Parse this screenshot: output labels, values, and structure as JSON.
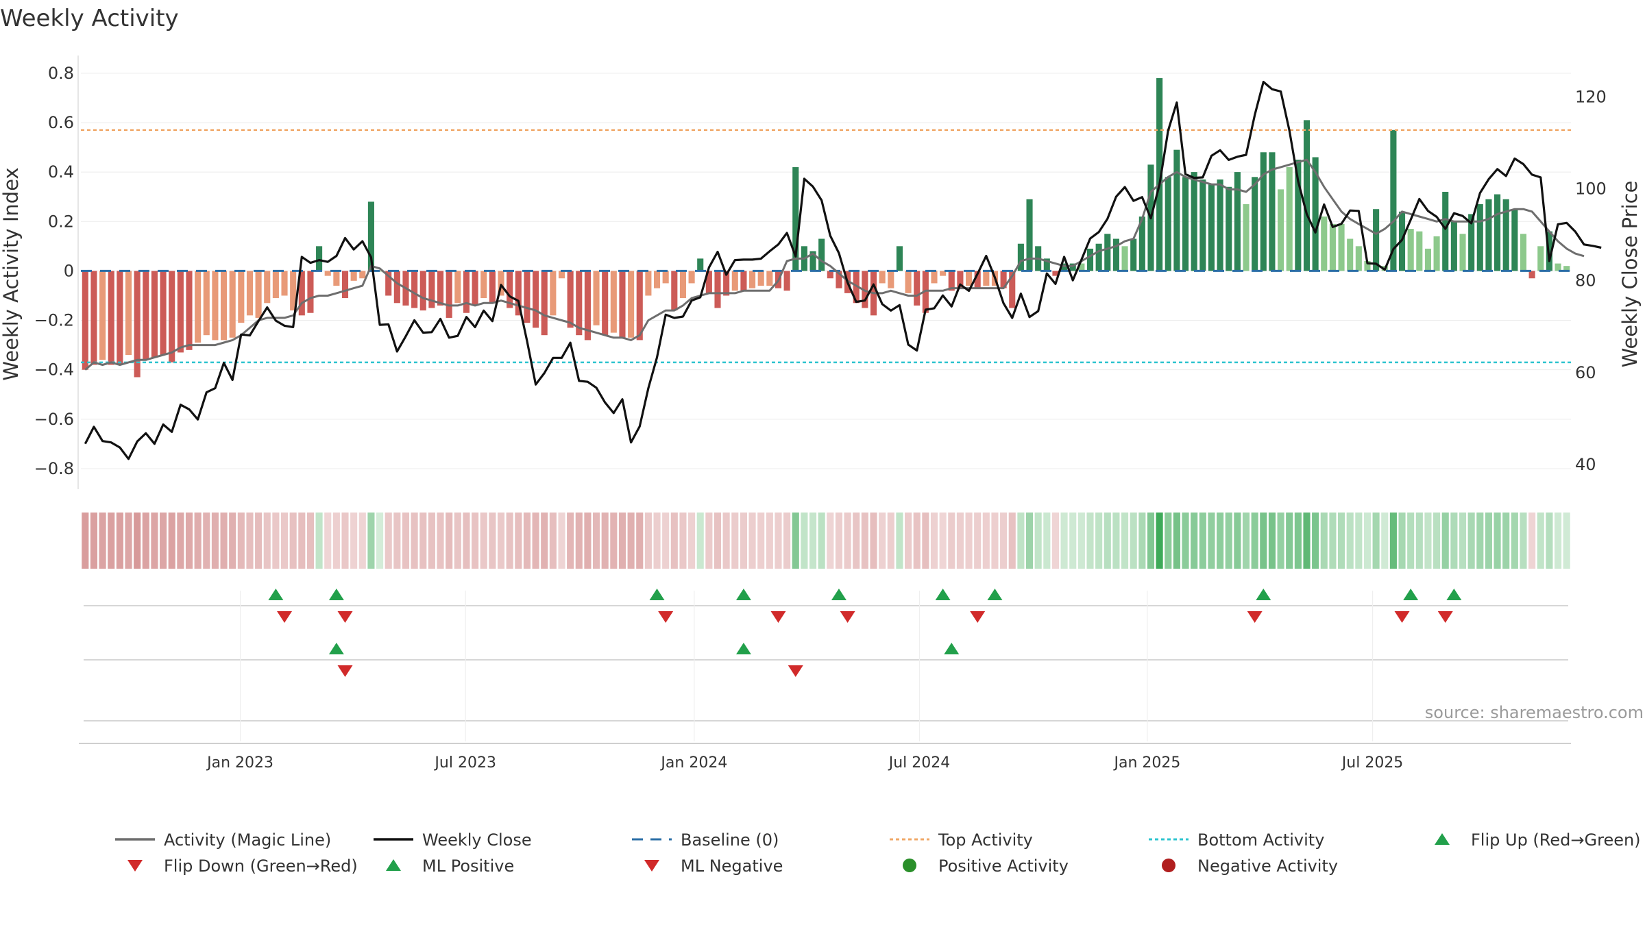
{
  "chart_data": {
    "type": "bar",
    "title": "Weekly Activity",
    "ylabel_left": "Weekly Activity Index",
    "ylabel_right": "Weekly Close Price",
    "source": "source: sharemaestro.com",
    "y_left": {
      "min": -0.85,
      "max": 0.83,
      "ticks": [
        0.8,
        0.6,
        0.4,
        0.2,
        0,
        -0.2,
        -0.4,
        -0.6,
        -0.8
      ],
      "tick_labels": [
        "0.8",
        "0.6",
        "0.4",
        "0.2",
        "0",
        "−0.2",
        "−0.4",
        "−0.6",
        "−0.8"
      ]
    },
    "y_right": {
      "min": 36.4,
      "max": 126.8,
      "ticks": [
        120,
        100,
        80,
        60,
        40
      ],
      "tick_labels": [
        "120",
        "100",
        "80",
        "60",
        "40"
      ]
    },
    "x_ticks": [
      {
        "label": "Jan 2023",
        "week": 17.9
      },
      {
        "label": "Jul 2023",
        "week": 43.9
      },
      {
        "label": "Jan 2024",
        "week": 70.3
      },
      {
        "label": "Jul 2024",
        "week": 96.3
      },
      {
        "label": "Jan 2025",
        "week": 122.6
      },
      {
        "label": "Jul 2025",
        "week": 148.6
      }
    ],
    "top_activity": 0.57,
    "bottom_activity": -0.37,
    "activity": [
      -0.4,
      -0.38,
      -0.36,
      -0.38,
      -0.38,
      -0.34,
      -0.43,
      -0.36,
      -0.35,
      -0.34,
      -0.37,
      -0.33,
      -0.32,
      -0.29,
      -0.26,
      -0.28,
      -0.28,
      -0.27,
      -0.21,
      -0.18,
      -0.19,
      -0.13,
      -0.11,
      -0.1,
      -0.16,
      -0.18,
      -0.17,
      0.1,
      -0.02,
      -0.06,
      -0.11,
      -0.04,
      -0.03,
      0.28,
      0.0,
      -0.1,
      -0.13,
      -0.14,
      -0.15,
      -0.16,
      -0.15,
      -0.14,
      -0.19,
      -0.13,
      -0.17,
      -0.14,
      -0.11,
      -0.13,
      -0.1,
      -0.15,
      -0.18,
      -0.21,
      -0.23,
      -0.26,
      -0.18,
      -0.03,
      -0.23,
      -0.26,
      -0.28,
      -0.22,
      -0.26,
      -0.25,
      -0.27,
      -0.27,
      -0.28,
      -0.1,
      -0.07,
      -0.05,
      -0.16,
      -0.11,
      -0.05,
      0.05,
      -0.09,
      -0.15,
      -0.1,
      -0.08,
      -0.08,
      -0.07,
      -0.06,
      -0.06,
      -0.07,
      -0.08,
      0.42,
      0.1,
      0.08,
      0.13,
      -0.03,
      -0.07,
      -0.09,
      -0.13,
      -0.15,
      -0.18,
      -0.05,
      -0.07,
      0.1,
      -0.09,
      -0.14,
      -0.17,
      -0.05,
      -0.02,
      -0.08,
      -0.07,
      -0.06,
      -0.07,
      -0.06,
      -0.06,
      -0.07,
      -0.15,
      0.11,
      0.29,
      0.1,
      0.05,
      -0.02,
      0.03,
      0.03,
      0.03,
      0.09,
      0.11,
      0.15,
      0.13,
      0.1,
      0.13,
      0.22,
      0.43,
      0.78,
      0.38,
      0.49,
      0.38,
      0.4,
      0.37,
      0.35,
      0.37,
      0.34,
      0.4,
      0.27,
      0.38,
      0.48,
      0.48,
      0.33,
      0.42,
      0.45,
      0.61,
      0.46,
      0.22,
      0.19,
      0.19,
      0.13,
      0.1,
      0.04,
      0.25,
      0.02,
      0.57,
      0.24,
      0.17,
      0.16,
      0.09,
      0.14,
      0.32,
      0.2,
      0.15,
      0.23,
      0.27,
      0.29,
      0.31,
      0.29,
      0.25,
      0.15,
      -0.03,
      0.1,
      0.16,
      0.03,
      0.02
    ],
    "magic_line": [
      -0.4,
      -0.37,
      -0.38,
      -0.37,
      -0.38,
      -0.37,
      -0.36,
      -0.36,
      -0.35,
      -0.34,
      -0.33,
      -0.31,
      -0.3,
      -0.3,
      -0.3,
      -0.3,
      -0.29,
      -0.28,
      -0.26,
      -0.23,
      -0.2,
      -0.19,
      -0.19,
      -0.19,
      -0.18,
      -0.13,
      -0.11,
      -0.1,
      -0.1,
      -0.09,
      -0.08,
      -0.07,
      -0.06,
      0.02,
      0.01,
      -0.02,
      -0.05,
      -0.07,
      -0.09,
      -0.11,
      -0.12,
      -0.13,
      -0.14,
      -0.14,
      -0.13,
      -0.14,
      -0.13,
      -0.13,
      -0.12,
      -0.13,
      -0.14,
      -0.15,
      -0.16,
      -0.18,
      -0.19,
      -0.2,
      -0.21,
      -0.23,
      -0.24,
      -0.25,
      -0.26,
      -0.27,
      -0.27,
      -0.28,
      -0.26,
      -0.2,
      -0.18,
      -0.16,
      -0.16,
      -0.14,
      -0.11,
      -0.1,
      -0.09,
      -0.09,
      -0.09,
      -0.09,
      -0.08,
      -0.08,
      -0.08,
      -0.08,
      -0.04,
      0.04,
      0.05,
      0.05,
      0.07,
      0.04,
      0.02,
      -0.01,
      -0.04,
      -0.06,
      -0.08,
      -0.09,
      -0.09,
      -0.08,
      -0.09,
      -0.1,
      -0.1,
      -0.08,
      -0.08,
      -0.08,
      -0.07,
      -0.07,
      -0.07,
      -0.07,
      -0.07,
      -0.07,
      -0.07,
      -0.02,
      0.04,
      0.05,
      0.05,
      0.04,
      0.03,
      0.02,
      0.02,
      0.04,
      0.06,
      0.08,
      0.09,
      0.1,
      0.12,
      0.13,
      0.21,
      0.32,
      0.35,
      0.38,
      0.4,
      0.38,
      0.37,
      0.36,
      0.35,
      0.35,
      0.33,
      0.33,
      0.32,
      0.35,
      0.39,
      0.41,
      0.42,
      0.43,
      0.44,
      0.45,
      0.4,
      0.34,
      0.29,
      0.24,
      0.21,
      0.19,
      0.17,
      0.15,
      0.17,
      0.2,
      0.24,
      0.23,
      0.22,
      0.21,
      0.2,
      0.21,
      0.2,
      0.2,
      0.2,
      0.2,
      0.21,
      0.23,
      0.24,
      0.25,
      0.25,
      0.24,
      0.2,
      0.16,
      0.12,
      0.09,
      0.07,
      0.06
    ],
    "close": [
      44.5,
      48.2,
      45.1,
      44.8,
      43.7,
      41.2,
      45.0,
      46.8,
      44.5,
      48.7,
      47.1,
      53.0,
      52.0,
      49.8,
      55.7,
      56.6,
      62.1,
      58.4,
      68.3,
      68.1,
      71.2,
      74.2,
      71.3,
      70.2,
      69.9,
      85.2,
      83.9,
      84.5,
      84.1,
      85.4,
      89.3,
      86.8,
      88.6,
      85.1,
      70.4,
      70.5,
      64.6,
      67.9,
      71.4,
      68.7,
      68.8,
      71.7,
      67.6,
      68.0,
      72.1,
      69.9,
      73.5,
      71.2,
      79.1,
      76.6,
      75.6,
      66.9,
      57.4,
      59.9,
      63.2,
      63.2,
      66.5,
      58.2,
      58.0,
      56.7,
      53.5,
      51.2,
      54.2,
      44.8,
      48.3,
      56.6,
      63.3,
      72.6,
      71.9,
      72.2,
      75.7,
      76.4,
      82.9,
      86.3,
      81.3,
      84.5,
      84.6,
      84.6,
      84.8,
      86.4,
      87.9,
      90.4,
      85.3,
      102.2,
      100.5,
      97.5,
      89.8,
      86.0,
      79.6,
      75.4,
      75.7,
      79.2,
      74.9,
      73.5,
      74.7,
      66.1,
      64.8,
      73.7,
      74.0,
      76.8,
      74.4,
      79.2,
      77.8,
      81.5,
      85.4,
      80.7,
      75.1,
      71.9,
      77.2,
      72.1,
      73.4,
      81.6,
      79.3,
      85.2,
      80.1,
      84.6,
      89.2,
      90.6,
      93.5,
      98.3,
      100.4,
      97.4,
      98.2,
      93.6,
      100.9,
      112.7,
      118.8,
      103.2,
      102.4,
      102.5,
      107.2,
      108.4,
      106.3,
      107.0,
      107.4,
      116.1,
      123.3,
      121.7,
      121.2,
      112.7,
      101.7,
      94.5,
      90.5,
      96.6,
      91.7,
      92.4,
      95.3,
      95.2,
      83.8,
      83.7,
      82.4,
      86.9,
      88.9,
      93.3,
      97.8,
      95.2,
      93.9,
      91.3,
      94.7,
      94.1,
      92.5,
      99.1,
      102.1,
      104.3,
      102.8,
      106.6,
      105.4,
      103.1,
      102.5,
      84.3,
      92.3,
      92.6,
      90.7,
      87.9,
      87.6,
      87.2
    ],
    "flip_up_weeks": [
      22,
      29,
      66,
      76,
      87,
      99,
      105,
      136,
      153,
      158
    ],
    "flip_down_weeks": [
      23,
      30,
      67,
      80,
      88,
      103,
      135,
      152,
      157
    ],
    "ml_positive_weeks": [
      29,
      76,
      100
    ],
    "ml_negative_weeks": [
      30,
      82
    ],
    "series": [
      {
        "name": "Activity (Magic Line)",
        "color": "#6e6e6e",
        "style": "solid"
      },
      {
        "name": "Weekly Close",
        "color": "#111111",
        "style": "solid"
      },
      {
        "name": "Baseline (0)",
        "color": "#2b6ea6",
        "style": "dashed"
      },
      {
        "name": "Top Activity",
        "color": "#f0a868",
        "style": "dotted"
      },
      {
        "name": "Bottom Activity",
        "color": "#2ec4cf",
        "style": "dotted"
      },
      {
        "name": "Flip Up (Red→Green)",
        "color": "#22a04b",
        "marker": "triangle-up"
      },
      {
        "name": "Flip Down (Green→Red)",
        "color": "#d12a2a",
        "marker": "triangle-down"
      },
      {
        "name": "ML Positive",
        "color": "#22a04b",
        "marker": "triangle-up"
      },
      {
        "name": "ML Negative",
        "color": "#d12a2a",
        "marker": "triangle-down"
      },
      {
        "name": "Positive Activity",
        "color": "#2a8f2a",
        "marker": "circle"
      },
      {
        "name": "Negative Activity",
        "color": "#b01e1e",
        "marker": "circle"
      }
    ]
  }
}
